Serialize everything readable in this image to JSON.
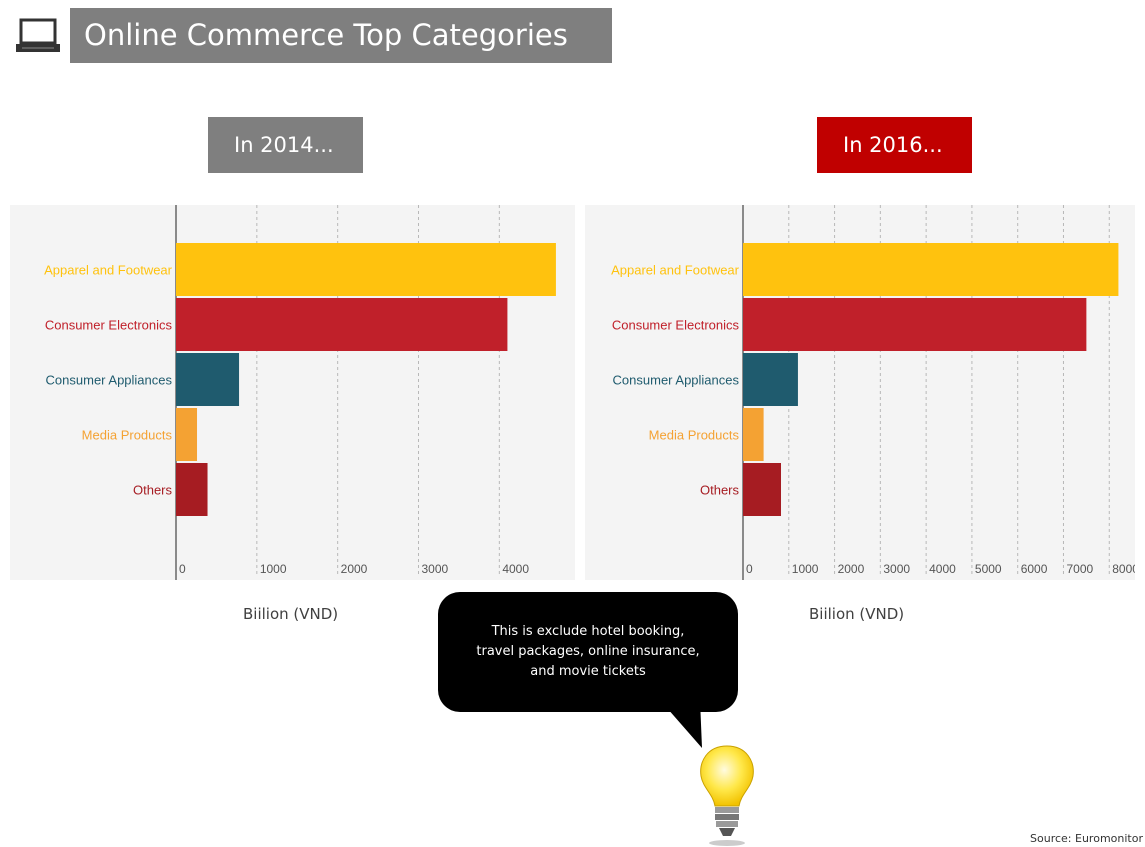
{
  "header": {
    "title": "Online Commerce Top Categories",
    "icon": "laptop-icon"
  },
  "panels": {
    "left_label": "In 2014...",
    "right_label": "In 2016..."
  },
  "callout": {
    "line1": "This is exclude hotel booking,",
    "line2": "travel packages, online insurance,",
    "line3": "and movie tickets"
  },
  "source": "Source: Euromonitor",
  "colors": {
    "apparel": "#ffc20e",
    "electronics": "#c0202a",
    "appliances": "#1f5b6e",
    "media": "#f4a233",
    "others": "#a61c22",
    "year_2014_box": "#7f7f7f",
    "year_2016_box": "#c00000"
  },
  "chart_data": [
    {
      "type": "bar",
      "orientation": "horizontal",
      "title": "In 2014...",
      "categories": [
        "Apparel and Footwear",
        "Consumer Electronics",
        "Consumer Appliances",
        "Media Products",
        "Others"
      ],
      "values": [
        4700,
        4100,
        780,
        260,
        390
      ],
      "xlabel": "Biilion (VND)",
      "xticks": [
        "0",
        "1000",
        "2000",
        "3000",
        "4000"
      ],
      "xlim": [
        0,
        4800
      ],
      "grid": true
    },
    {
      "type": "bar",
      "orientation": "horizontal",
      "title": "In 2016...",
      "categories": [
        "Apparel and Footwear",
        "Consumer Electronics",
        "Consumer Appliances",
        "Media Products",
        "Others"
      ],
      "values": [
        8200,
        7500,
        1200,
        450,
        830
      ],
      "xlabel": "Biilion (VND)",
      "xticks": [
        "0",
        "1000",
        "2000",
        "3000",
        "4000",
        "5000",
        "6000",
        "7000",
        "8000"
      ],
      "xlim": [
        0,
        8300
      ],
      "grid": true
    }
  ]
}
